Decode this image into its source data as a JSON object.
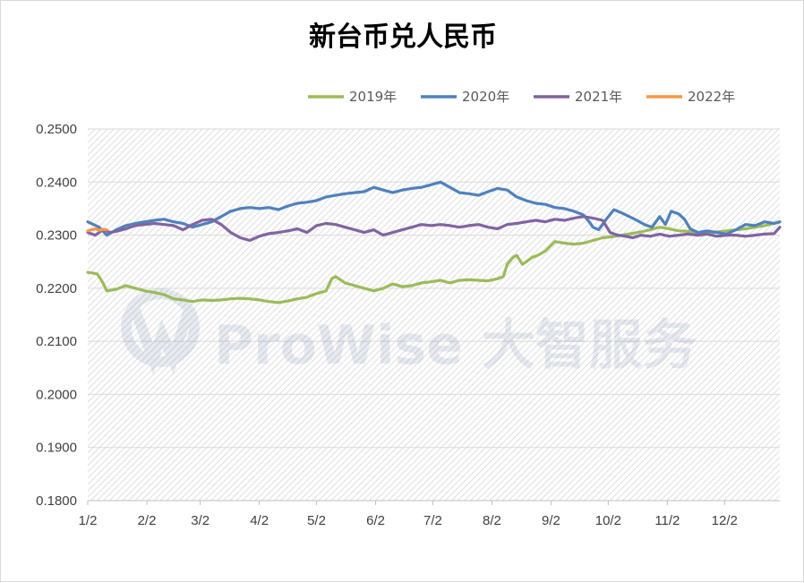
{
  "chart_data": {
    "type": "line",
    "title": "新台币兑人民币",
    "xlabel": "",
    "ylabel": "",
    "ylim": [
      0.18,
      0.25
    ],
    "y_ticks": [
      "0.2500",
      "0.2400",
      "0.2300",
      "0.2200",
      "0.2100",
      "0.2000",
      "0.1900",
      "0.1800"
    ],
    "y_tick_values": [
      0.25,
      0.24,
      0.23,
      0.22,
      0.21,
      0.2,
      0.19,
      0.18
    ],
    "x_ticks": [
      "1/2",
      "2/2",
      "3/2",
      "4/2",
      "5/2",
      "6/2",
      "7/2",
      "8/2",
      "9/2",
      "10/2",
      "11/2",
      "12/2"
    ],
    "x_tick_days": [
      0,
      31,
      59,
      90,
      120,
      151,
      181,
      212,
      243,
      273,
      304,
      334
    ],
    "x_range_days": [
      0,
      363
    ],
    "grid": true,
    "legend": "top",
    "series": [
      {
        "name": "2019年",
        "color": "#9bbb59",
        "x": [
          0,
          5,
          8,
          10,
          15,
          20,
          25,
          30,
          35,
          40,
          45,
          50,
          55,
          60,
          65,
          70,
          75,
          80,
          85,
          90,
          95,
          100,
          105,
          110,
          115,
          120,
          125,
          128,
          130,
          135,
          140,
          145,
          150,
          155,
          160,
          165,
          170,
          175,
          180,
          185,
          190,
          195,
          200,
          205,
          210,
          215,
          218,
          220,
          223,
          225,
          228,
          230,
          233,
          236,
          240,
          245,
          250,
          255,
          260,
          265,
          270,
          275,
          280,
          285,
          290,
          295,
          300,
          305,
          310,
          315,
          320,
          325,
          330,
          335,
          340,
          345,
          350,
          355,
          360,
          363
        ],
        "y": [
          0.223,
          0.2227,
          0.221,
          0.2195,
          0.2198,
          0.2205,
          0.22,
          0.2195,
          0.2192,
          0.2188,
          0.218,
          0.2178,
          0.2175,
          0.2178,
          0.2177,
          0.2178,
          0.218,
          0.2181,
          0.218,
          0.2178,
          0.2175,
          0.2173,
          0.2176,
          0.218,
          0.2183,
          0.219,
          0.2195,
          0.2218,
          0.2222,
          0.221,
          0.2205,
          0.22,
          0.2195,
          0.22,
          0.2208,
          0.2203,
          0.2205,
          0.221,
          0.2212,
          0.2215,
          0.221,
          0.2215,
          0.2216,
          0.2215,
          0.2214,
          0.2218,
          0.2222,
          0.2245,
          0.2258,
          0.2262,
          0.2245,
          0.225,
          0.2258,
          0.2262,
          0.227,
          0.2288,
          0.2285,
          0.2283,
          0.2285,
          0.229,
          0.2295,
          0.2297,
          0.23,
          0.2303,
          0.2306,
          0.231,
          0.2315,
          0.2312,
          0.2308,
          0.2307,
          0.2305,
          0.2303,
          0.2306,
          0.2308,
          0.231,
          0.2312,
          0.2315,
          0.2318,
          0.2322,
          0.2325
        ]
      },
      {
        "name": "2020年",
        "color": "#4f81bd",
        "x": [
          0,
          3,
          6,
          10,
          15,
          20,
          25,
          30,
          35,
          40,
          45,
          50,
          55,
          60,
          65,
          70,
          75,
          80,
          85,
          90,
          95,
          100,
          105,
          110,
          115,
          120,
          125,
          130,
          135,
          140,
          145,
          150,
          155,
          160,
          165,
          170,
          175,
          180,
          185,
          190,
          195,
          200,
          205,
          210,
          215,
          220,
          225,
          230,
          235,
          240,
          245,
          250,
          255,
          260,
          263,
          265,
          268,
          272,
          276,
          280,
          284,
          288,
          292,
          296,
          300,
          303,
          306,
          310,
          313,
          316,
          320,
          325,
          330,
          335,
          340,
          345,
          350,
          355,
          360,
          363
        ],
        "y": [
          0.2325,
          0.232,
          0.2315,
          0.23,
          0.231,
          0.2318,
          0.2322,
          0.2325,
          0.2328,
          0.233,
          0.2325,
          0.2322,
          0.2315,
          0.232,
          0.2325,
          0.2335,
          0.2345,
          0.235,
          0.2352,
          0.235,
          0.2352,
          0.2348,
          0.2355,
          0.236,
          0.2362,
          0.2365,
          0.2372,
          0.2375,
          0.2378,
          0.238,
          0.2382,
          0.239,
          0.2385,
          0.238,
          0.2385,
          0.2388,
          0.239,
          0.2395,
          0.24,
          0.239,
          0.238,
          0.2378,
          0.2375,
          0.2382,
          0.2388,
          0.2385,
          0.2372,
          0.2365,
          0.236,
          0.2358,
          0.2352,
          0.235,
          0.2345,
          0.2338,
          0.2325,
          0.2315,
          0.231,
          0.233,
          0.2348,
          0.2342,
          0.2335,
          0.2328,
          0.232,
          0.2315,
          0.2335,
          0.232,
          0.2345,
          0.234,
          0.233,
          0.2312,
          0.2305,
          0.2308,
          0.2305,
          0.2302,
          0.231,
          0.232,
          0.2318,
          0.2325,
          0.2322,
          0.2325
        ]
      },
      {
        "name": "2021年",
        "color": "#8064a2",
        "x": [
          0,
          4,
          8,
          12,
          16,
          20,
          25,
          30,
          35,
          40,
          45,
          50,
          55,
          60,
          65,
          70,
          75,
          80,
          85,
          90,
          95,
          100,
          105,
          110,
          115,
          120,
          125,
          130,
          135,
          140,
          145,
          150,
          155,
          160,
          165,
          170,
          175,
          180,
          185,
          190,
          195,
          200,
          205,
          210,
          215,
          220,
          225,
          230,
          235,
          240,
          245,
          250,
          255,
          260,
          265,
          270,
          274,
          278,
          282,
          286,
          290,
          295,
          300,
          305,
          310,
          315,
          320,
          325,
          330,
          335,
          340,
          345,
          350,
          355,
          360,
          363
        ],
        "y": [
          0.2305,
          0.23,
          0.231,
          0.2305,
          0.2308,
          0.2312,
          0.2318,
          0.232,
          0.2322,
          0.232,
          0.2318,
          0.231,
          0.232,
          0.2328,
          0.233,
          0.232,
          0.2305,
          0.2295,
          0.229,
          0.2298,
          0.2303,
          0.2305,
          0.2308,
          0.2312,
          0.2305,
          0.2318,
          0.2322,
          0.232,
          0.2315,
          0.231,
          0.2305,
          0.231,
          0.23,
          0.2305,
          0.231,
          0.2315,
          0.232,
          0.2318,
          0.232,
          0.2318,
          0.2315,
          0.2318,
          0.232,
          0.2315,
          0.2312,
          0.232,
          0.2322,
          0.2325,
          0.2328,
          0.2325,
          0.233,
          0.2328,
          0.2332,
          0.2335,
          0.2332,
          0.2328,
          0.2305,
          0.23,
          0.2298,
          0.2295,
          0.23,
          0.2298,
          0.2302,
          0.2298,
          0.23,
          0.2302,
          0.23,
          0.2302,
          0.2298,
          0.23,
          0.23,
          0.2298,
          0.23,
          0.2302,
          0.2303,
          0.2315
        ]
      },
      {
        "name": "2022年",
        "color": "#f79646",
        "x": [
          0,
          2,
          4,
          6,
          8,
          10
        ],
        "y": [
          0.2308,
          0.231,
          0.2312,
          0.2309,
          0.2311,
          0.231
        ]
      }
    ]
  },
  "watermark": {
    "text": "ProWise 大智服务",
    "color": "#1f3d7a"
  }
}
